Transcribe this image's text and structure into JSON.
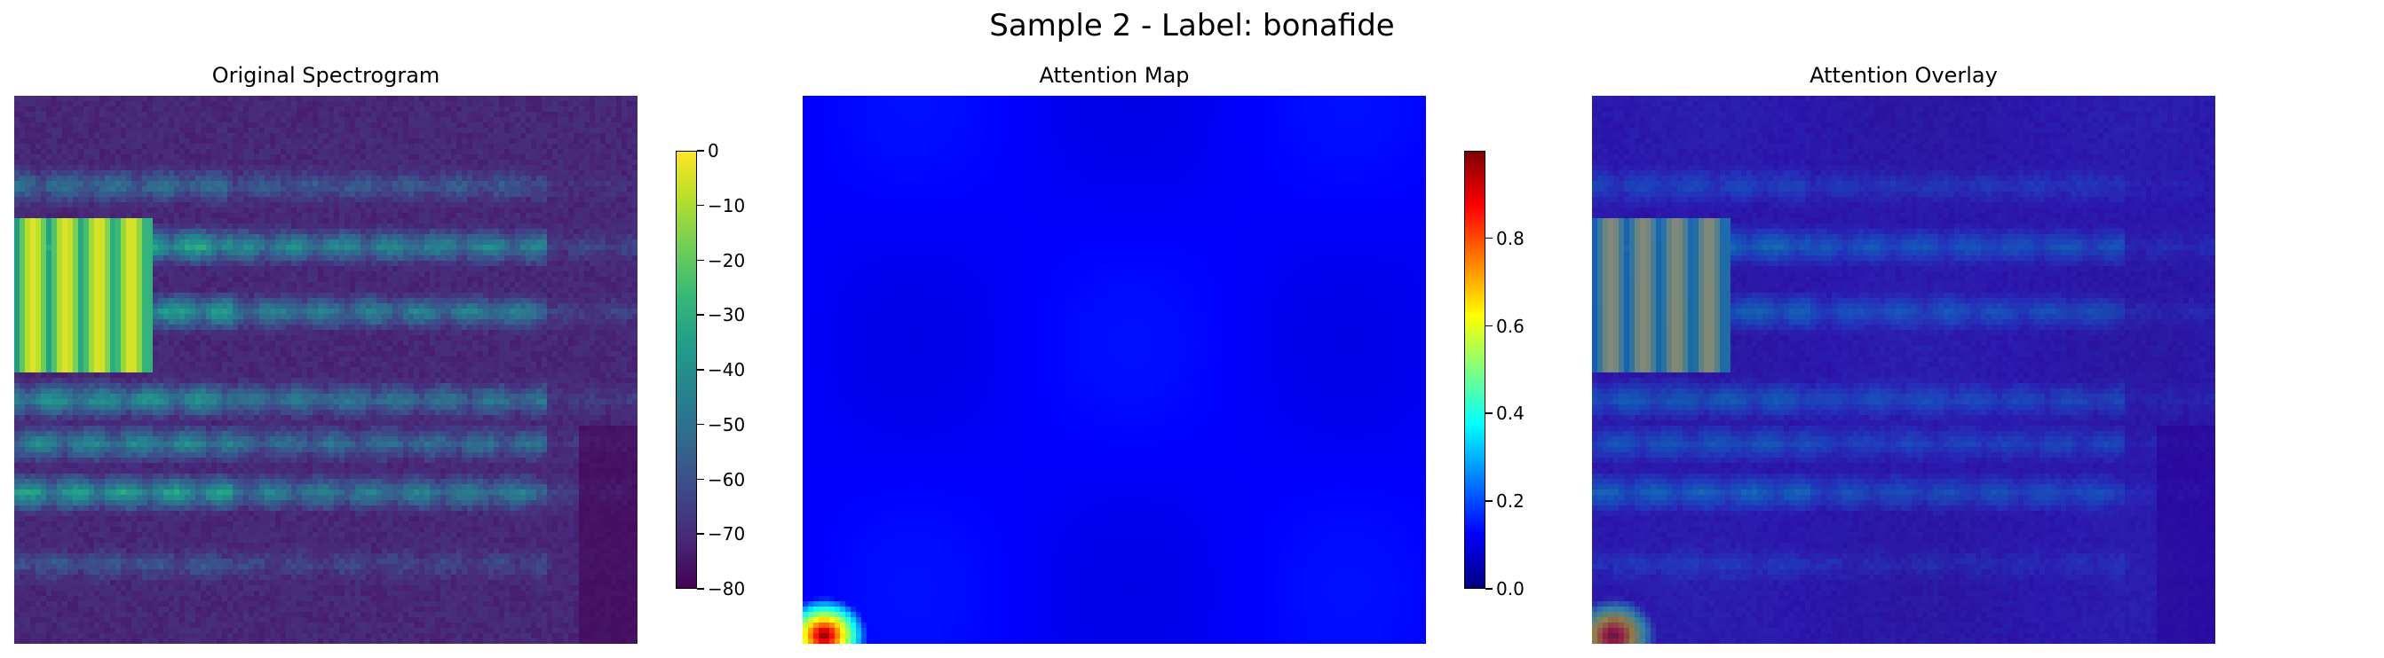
{
  "title": "Sample 2 - Label: bonafide",
  "colors": {
    "viridis": [
      "#440154",
      "#482878",
      "#3e4989",
      "#31688e",
      "#26828e",
      "#1f9e89",
      "#35b779",
      "#6ece58",
      "#b5de2b",
      "#fde725"
    ],
    "jet": [
      "#00007f",
      "#0000ff",
      "#007fff",
      "#00ffff",
      "#7fff7f",
      "#ffff00",
      "#ff7f00",
      "#ff0000",
      "#7f0000"
    ]
  },
  "chart_data": [
    {
      "type": "heatmap",
      "title": "Original Spectrogram",
      "colormap": "viridis",
      "colorbar": {
        "ticks": [
          "0",
          "−10",
          "−20",
          "−30",
          "−40",
          "−50",
          "−60",
          "−70",
          "−80"
        ],
        "range": [
          -80,
          0
        ]
      },
      "axes": "off"
    },
    {
      "type": "heatmap",
      "title": "Attention Map",
      "colormap": "jet",
      "colorbar": {
        "ticks": [
          "0.8",
          "0.6",
          "0.4",
          "0.2",
          "0.0"
        ],
        "range": [
          0,
          1
        ]
      },
      "axes": "off",
      "hotspot": "bottom-left"
    },
    {
      "type": "heatmap",
      "title": "Attention Overlay",
      "colormap": "viridis + jet overlay",
      "axes": "off"
    }
  ]
}
